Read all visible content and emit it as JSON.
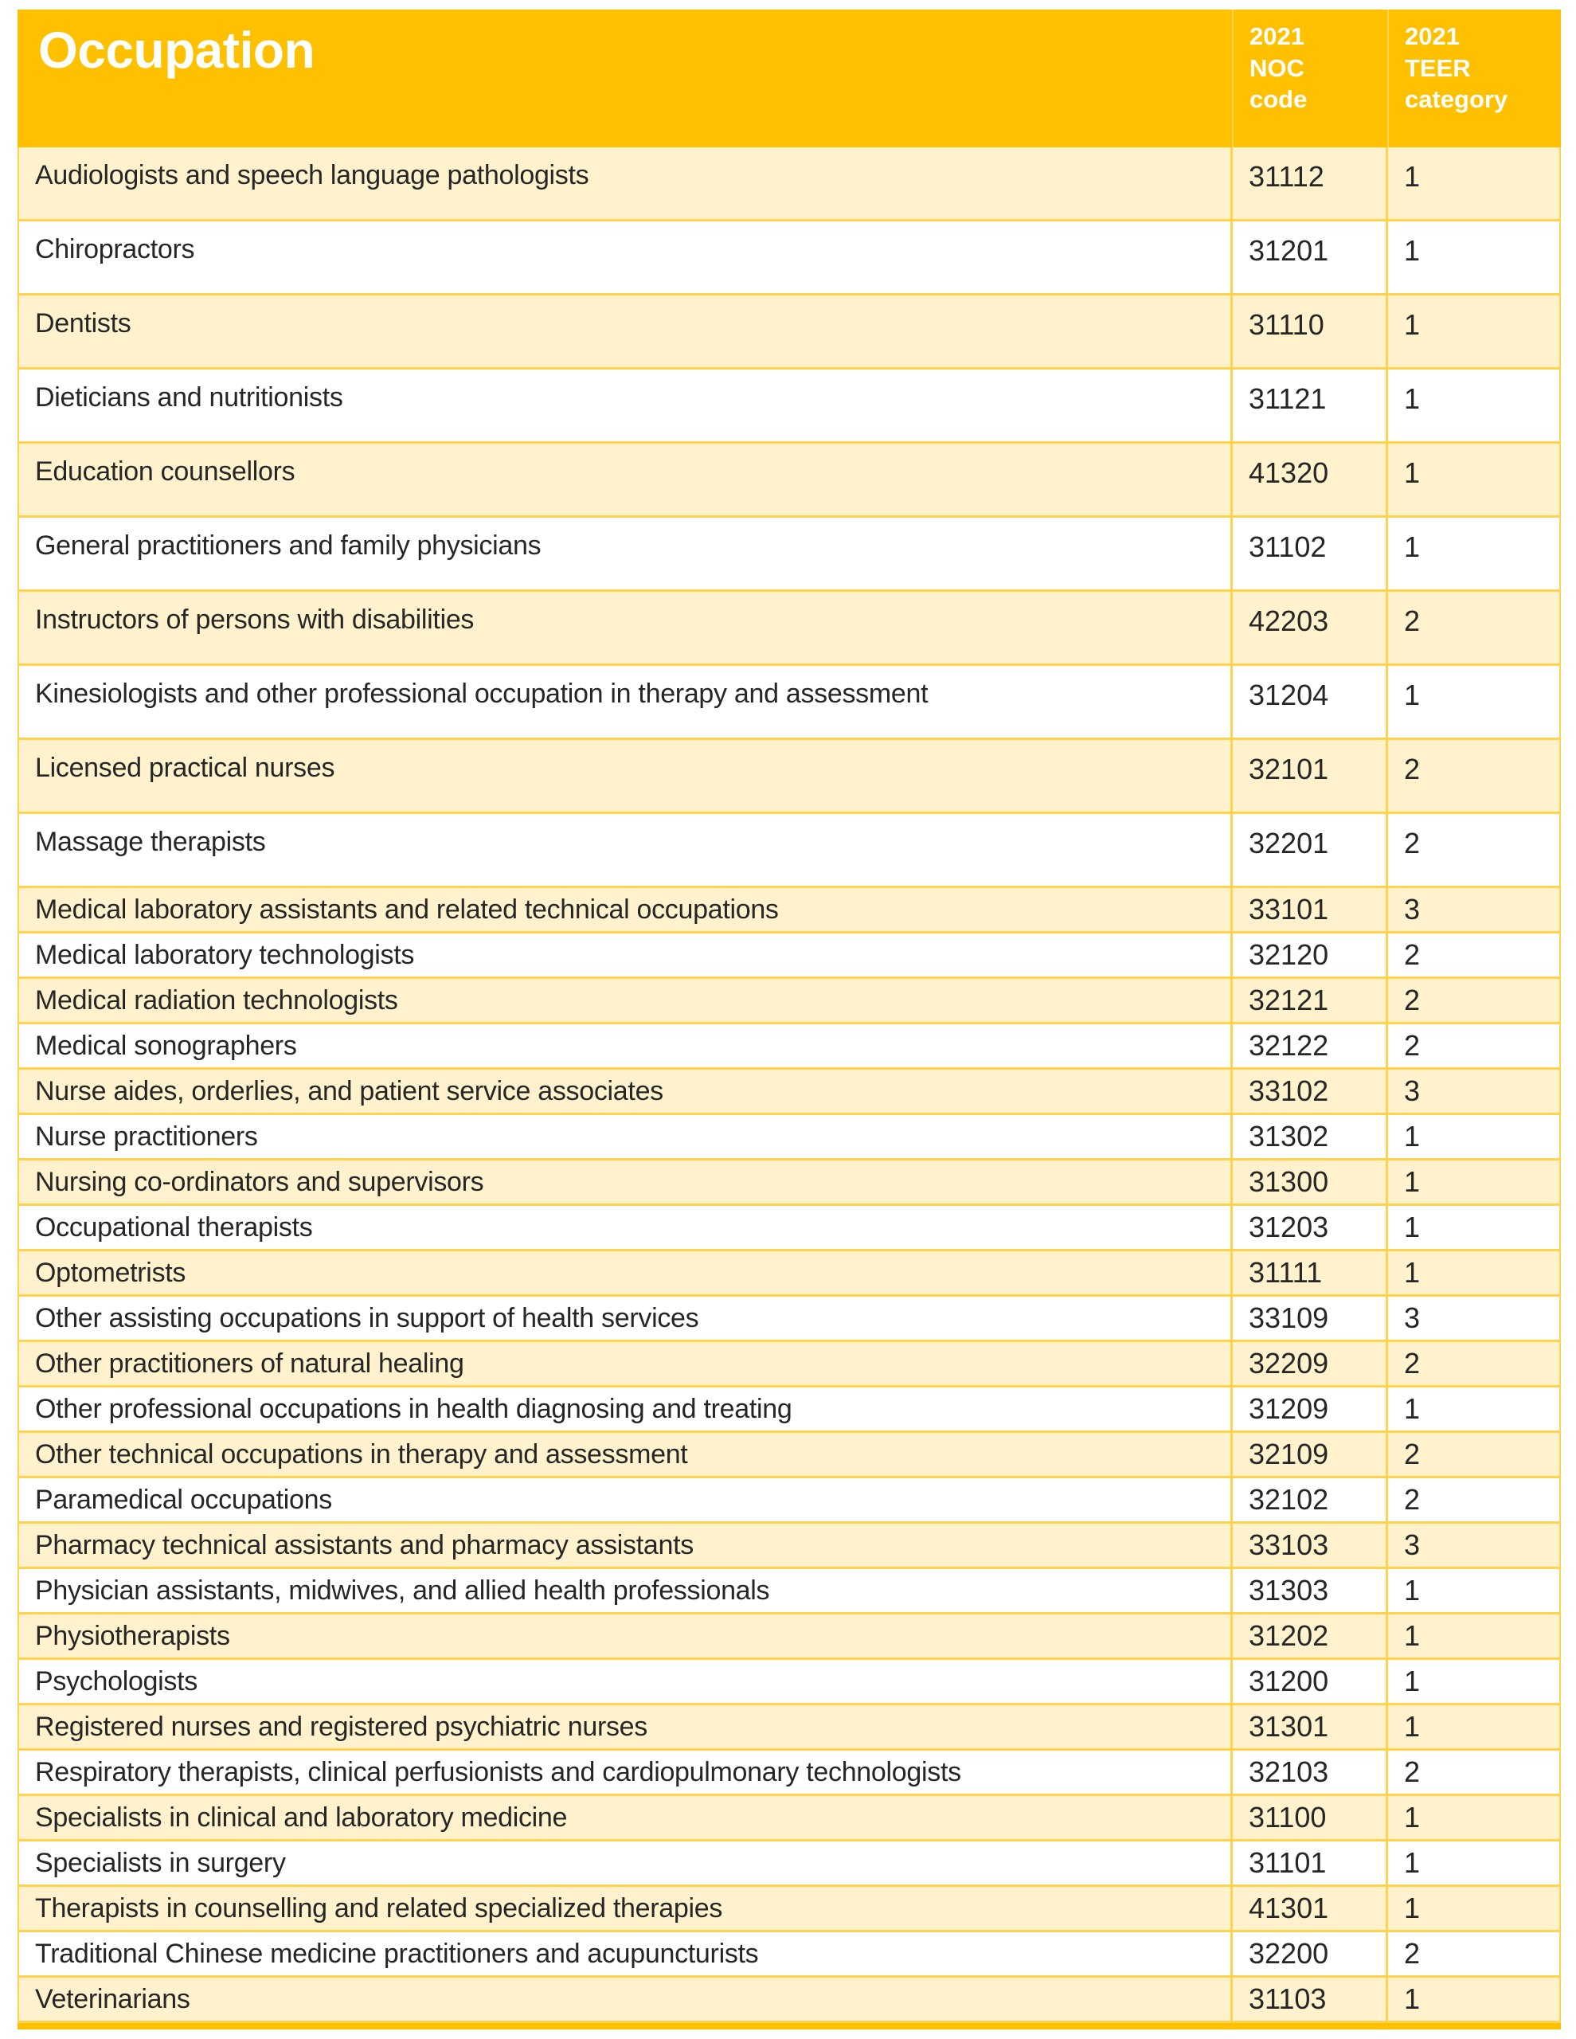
{
  "colors": {
    "header_bg": "#FFC000",
    "row_alt_bg": "#FFF2CC",
    "row_bg": "#FFFFFF",
    "grid_line": "#FFD34D",
    "text": "#262626",
    "header_text": "#FFFFFF"
  },
  "table": {
    "header": {
      "occupation": "Occupation",
      "noc": "2021\nNOC\ncode",
      "teer": "2021\nTEER\ncategory"
    },
    "rows": [
      {
        "occupation": "Audiologists and speech language pathologists",
        "noc": "31112",
        "teer": "1"
      },
      {
        "occupation": "Chiropractors",
        "noc": "31201",
        "teer": "1"
      },
      {
        "occupation": "Dentists",
        "noc": "31110",
        "teer": "1"
      },
      {
        "occupation": "Dieticians and nutritionists",
        "noc": "31121",
        "teer": "1"
      },
      {
        "occupation": "Education counsellors",
        "noc": "41320",
        "teer": "1"
      },
      {
        "occupation": "General practitioners and family physicians",
        "noc": "31102",
        "teer": "1"
      },
      {
        "occupation": "Instructors of persons with disabilities",
        "noc": "42203",
        "teer": "2"
      },
      {
        "occupation": "Kinesiologists and other professional occupation in therapy and assessment",
        "noc": "31204",
        "teer": "1"
      },
      {
        "occupation": "Licensed practical nurses",
        "noc": "32101",
        "teer": "2"
      },
      {
        "occupation": "Massage therapists",
        "noc": "32201",
        "teer": "2"
      },
      {
        "occupation": "Medical laboratory assistants and related technical occupations",
        "noc": "33101",
        "teer": "3"
      },
      {
        "occupation": "Medical laboratory technologists",
        "noc": "32120",
        "teer": "2"
      },
      {
        "occupation": "Medical radiation technologists",
        "noc": "32121",
        "teer": "2"
      },
      {
        "occupation": "Medical sonographers",
        "noc": "32122",
        "teer": "2"
      },
      {
        "occupation": "Nurse aides, orderlies, and patient service associates",
        "noc": "33102",
        "teer": "3"
      },
      {
        "occupation": "Nurse practitioners",
        "noc": "31302",
        "teer": "1"
      },
      {
        "occupation": "Nursing co-ordinators and supervisors",
        "noc": "31300",
        "teer": "1"
      },
      {
        "occupation": "Occupational therapists",
        "noc": "31203",
        "teer": "1"
      },
      {
        "occupation": "Optometrists",
        "noc": "31111",
        "teer": "1"
      },
      {
        "occupation": "Other assisting occupations in support of health services",
        "noc": "33109",
        "teer": "3"
      },
      {
        "occupation": "Other practitioners of natural healing",
        "noc": "32209",
        "teer": "2"
      },
      {
        "occupation": "Other professional occupations in health diagnosing and treating",
        "noc": "31209",
        "teer": "1"
      },
      {
        "occupation": "Other technical occupations in therapy and assessment",
        "noc": "32109",
        "teer": "2"
      },
      {
        "occupation": "Paramedical occupations",
        "noc": "32102",
        "teer": "2"
      },
      {
        "occupation": "Pharmacy technical assistants and pharmacy assistants",
        "noc": "33103",
        "teer": "3"
      },
      {
        "occupation": "Physician assistants, midwives, and allied health professionals",
        "noc": "31303",
        "teer": "1"
      },
      {
        "occupation": "Physiotherapists",
        "noc": "31202",
        "teer": "1"
      },
      {
        "occupation": "Psychologists",
        "noc": "31200",
        "teer": "1"
      },
      {
        "occupation": "Registered nurses and registered psychiatric nurses",
        "noc": "31301",
        "teer": "1"
      },
      {
        "occupation": "Respiratory therapists, clinical perfusionists and cardiopulmonary technologists",
        "noc": "32103",
        "teer": "2"
      },
      {
        "occupation": "Specialists in clinical and laboratory medicine",
        "noc": "31100",
        "teer": "1"
      },
      {
        "occupation": "Specialists in surgery",
        "noc": "31101",
        "teer": "1"
      },
      {
        "occupation": "Therapists in counselling and related specialized therapies",
        "noc": "41301",
        "teer": "1"
      },
      {
        "occupation": "Traditional Chinese medicine practitioners and acupuncturists",
        "noc": "32200",
        "teer": "2"
      },
      {
        "occupation": "Veterinarians",
        "noc": "31103",
        "teer": "1"
      }
    ]
  }
}
